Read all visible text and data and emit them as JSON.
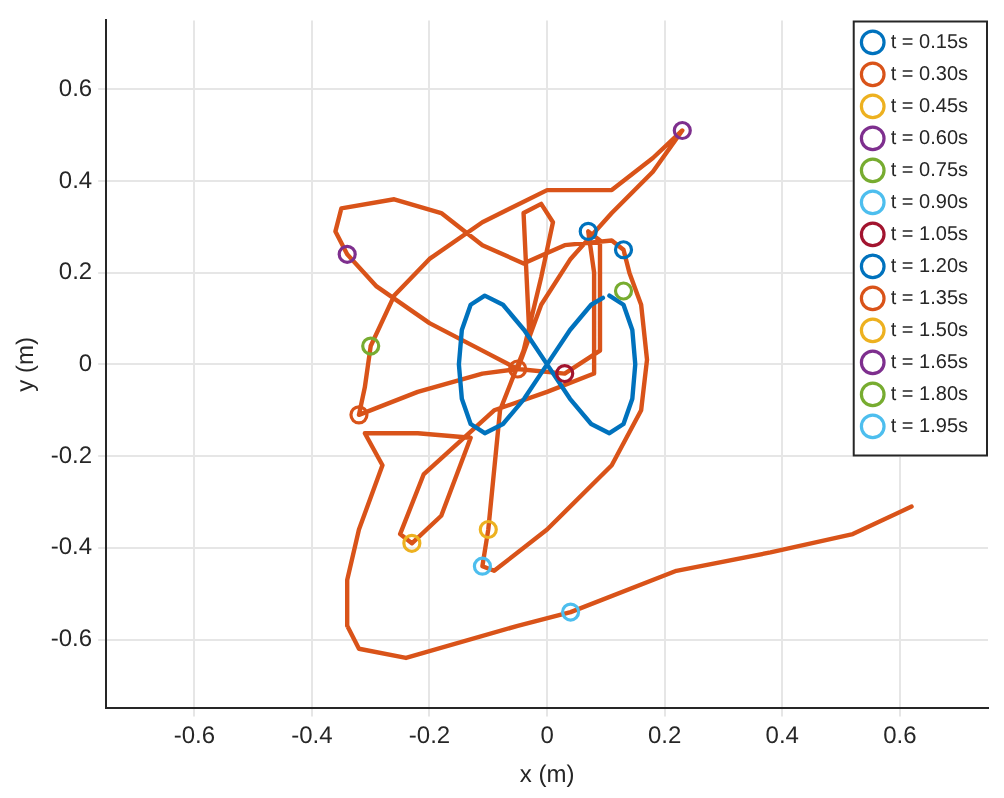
{
  "chart_data": {
    "type": "scatter",
    "xlabel": "x (m)",
    "ylabel": "y (m)",
    "xlim": [
      -0.75,
      0.75
    ],
    "ylim": [
      -0.75,
      0.75
    ],
    "xticks": [
      -0.6,
      -0.4,
      -0.2,
      0,
      0.2,
      0.4,
      0.6
    ],
    "yticks": [
      -0.6,
      -0.4,
      -0.2,
      0,
      0.2,
      0.4,
      0.6
    ],
    "grid": true,
    "legend": "top right",
    "marker": "circle",
    "series": [
      {
        "name": "t = 0.15s",
        "color": "#0072bd",
        "x": [
          0.07
        ],
        "values": [
          0.29
        ]
      },
      {
        "name": "t = 0.30s",
        "color": "#d95319",
        "x": [
          -0.05
        ],
        "values": [
          -0.01
        ]
      },
      {
        "name": "t = 0.45s",
        "color": "#edb120",
        "x": [
          -0.1
        ],
        "values": [
          -0.36
        ]
      },
      {
        "name": "t = 0.60s",
        "color": "#7e2f8e",
        "x": [
          0.23
        ],
        "values": [
          0.51
        ]
      },
      {
        "name": "t = 0.75s",
        "color": "#77ac30",
        "x": [
          0.13
        ],
        "values": [
          0.16
        ]
      },
      {
        "name": "t = 0.90s",
        "color": "#4dbeee",
        "x": [
          -0.11
        ],
        "values": [
          -0.44
        ]
      },
      {
        "name": "t = 1.05s",
        "color": "#a2142f",
        "x": [
          0.03
        ],
        "values": [
          -0.02
        ]
      },
      {
        "name": "t = 1.20s",
        "color": "#0072bd",
        "x": [
          0.13
        ],
        "values": [
          0.25
        ]
      },
      {
        "name": "t = 1.35s",
        "color": "#d95319",
        "x": [
          -0.32
        ],
        "values": [
          -0.11
        ]
      },
      {
        "name": "t = 1.50s",
        "color": "#edb120",
        "x": [
          -0.23
        ],
        "values": [
          -0.39
        ]
      },
      {
        "name": "t = 1.65s",
        "color": "#7e2f8e",
        "x": [
          -0.34
        ],
        "values": [
          0.24
        ]
      },
      {
        "name": "t = 1.80s",
        "color": "#77ac30",
        "x": [
          -0.3
        ],
        "values": [
          0.04
        ]
      },
      {
        "name": "t = 1.95s",
        "color": "#4dbeee",
        "x": [
          0.04
        ],
        "values": [
          -0.54
        ]
      },
      {
        "type": "line",
        "marker": "none",
        "color": "#0072bd",
        "x": [
          0.106,
          0.13,
          0.145,
          0.15,
          0.145,
          0.13,
          0.106,
          0.075,
          0.039,
          0,
          -0.039,
          -0.075,
          -0.106,
          -0.13,
          -0.145,
          -0.15,
          -0.145,
          -0.13,
          -0.106,
          -0.075,
          -0.039,
          0,
          0.039,
          0.075,
          0.095
        ],
        "values": [
          0.15,
          0.13,
          0.075,
          0,
          -0.075,
          -0.13,
          -0.15,
          -0.13,
          -0.075,
          0,
          0.075,
          0.13,
          0.15,
          0.13,
          0.075,
          0,
          -0.075,
          -0.13,
          -0.15,
          -0.13,
          -0.075,
          0,
          0.075,
          0.13,
          0.145
        ]
      },
      {
        "type": "line",
        "marker": "none",
        "color": "#d95319",
        "x": [
          -0.05,
          -0.01,
          0.04,
          0.11,
          0.18,
          0.23,
          0.18,
          0.11,
          0,
          -0.11,
          -0.2,
          -0.26,
          -0.3,
          -0.31,
          -0.32,
          -0.22,
          -0.11,
          -0.05,
          -0.03,
          -0.04,
          -0.01,
          0.01,
          -0.01,
          -0.04,
          -0.08,
          -0.1,
          -0.11,
          -0.09,
          0,
          0.11,
          0.16,
          0.17,
          0.16,
          0.14,
          0.13,
          0.11,
          0.03,
          -0.04,
          -0.11,
          -0.18,
          -0.26,
          -0.35,
          -0.36,
          -0.34,
          -0.29,
          -0.2,
          -0.11,
          -0.05,
          0.03,
          0.09,
          0.09,
          0.07,
          0.08,
          0.08,
          0,
          -0.09,
          -0.21,
          -0.25,
          -0.23,
          -0.18,
          -0.13,
          -0.22,
          -0.31,
          -0.28,
          -0.32,
          -0.34,
          -0.34,
          -0.32,
          -0.24,
          -0.05,
          0.04,
          0.22,
          0.38,
          0.52,
          0.62
        ],
        "values": [
          -0.01,
          0.13,
          0.23,
          0.33,
          0.42,
          0.51,
          0.45,
          0.38,
          0.38,
          0.31,
          0.23,
          0.15,
          0.04,
          -0.05,
          -0.11,
          -0.06,
          -0.02,
          -0.01,
          0.06,
          0.33,
          0.35,
          0.31,
          0.19,
          0.03,
          -0.1,
          -0.36,
          -0.44,
          -0.45,
          -0.36,
          -0.22,
          -0.1,
          0.01,
          0.13,
          0.2,
          0.25,
          0.27,
          0.26,
          0.22,
          0.26,
          0.33,
          0.36,
          0.34,
          0.29,
          0.24,
          0.17,
          0.09,
          0.03,
          -0.01,
          -0.02,
          0.03,
          0.27,
          0.29,
          0.2,
          -0.02,
          -0.06,
          -0.1,
          -0.24,
          -0.37,
          -0.39,
          -0.33,
          -0.16,
          -0.15,
          -0.15,
          -0.22,
          -0.36,
          -0.47,
          -0.57,
          -0.62,
          -0.64,
          -0.57,
          -0.54,
          -0.45,
          -0.41,
          -0.37,
          -0.31
        ]
      }
    ]
  }
}
